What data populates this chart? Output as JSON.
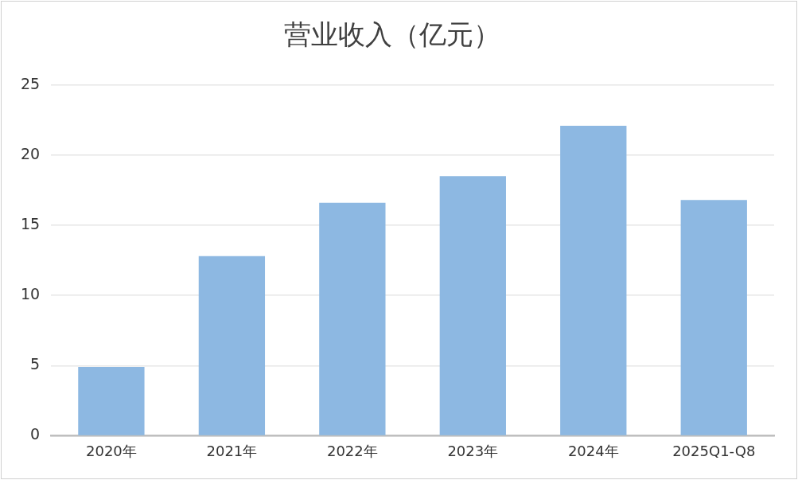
{
  "chart_data": {
    "type": "bar",
    "title": "营业收入（亿元）",
    "categories": [
      "2020年",
      "2021年",
      "2022年",
      "2023年",
      "2024年",
      "2025Q1-Q8"
    ],
    "values": [
      4.9,
      12.8,
      16.6,
      18.5,
      22.1,
      16.8
    ],
    "color": "#8db8e2",
    "ylim": [
      0,
      25
    ],
    "yticks": [
      0,
      5,
      10,
      15,
      20,
      25
    ],
    "grid": "y"
  }
}
